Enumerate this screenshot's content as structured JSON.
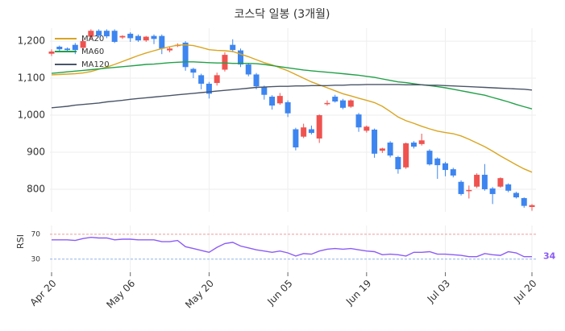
{
  "chart_data": [
    {
      "type": "candlestick",
      "title": "코스닥 일봉 (3개월)",
      "categories": [
        "Apr 20",
        null,
        null,
        null,
        null,
        null,
        null,
        null,
        null,
        null,
        "May 06",
        null,
        null,
        null,
        null,
        null,
        null,
        null,
        null,
        null,
        "May 20",
        null,
        null,
        null,
        null,
        null,
        null,
        null,
        null,
        null,
        "Jun 05",
        null,
        null,
        null,
        null,
        null,
        null,
        null,
        null,
        null,
        "Jun 19",
        null,
        null,
        null,
        null,
        null,
        null,
        null,
        null,
        null,
        "Jul 03",
        null,
        null,
        null,
        null,
        null,
        null,
        null,
        null,
        null,
        null,
        "Jul 20"
      ],
      "open": [
        1166,
        1185,
        1180,
        1190,
        1182,
        1212,
        1228,
        1228,
        1228,
        1210,
        1220,
        1214,
        1202,
        1214,
        1214,
        1175,
        1188,
        1196,
        1125,
        1108,
        1085,
        1087,
        1123,
        1190,
        1175,
        1137,
        1110,
        1076,
        1050,
        1032,
        1035,
        962,
        942,
        962,
        937,
        1030,
        1050,
        1040,
        1023,
        1002,
        958,
        961,
        904,
        926,
        887,
        859,
        926,
        922,
        904,
        883,
        870,
        854,
        820,
        796,
        807,
        839,
        802,
        807,
        813,
        790,
        776,
        752
      ],
      "high": [
        1178,
        1188,
        1183,
        1195,
        1205,
        1232,
        1232,
        1232,
        1232,
        1216,
        1224,
        1218,
        1214,
        1218,
        1218,
        1184,
        1194,
        1200,
        1128,
        1112,
        1090,
        1115,
        1170,
        1205,
        1180,
        1140,
        1114,
        1080,
        1054,
        1060,
        1040,
        966,
        977,
        972,
        1002,
        1040,
        1055,
        1044,
        1043,
        1006,
        972,
        964,
        912,
        930,
        890,
        926,
        930,
        950,
        908,
        886,
        874,
        858,
        824,
        810,
        843,
        868,
        806,
        832,
        816,
        793,
        778,
        760
      ],
      "low": [
        1160,
        1172,
        1170,
        1165,
        1178,
        1205,
        1210,
        1208,
        1195,
        1206,
        1198,
        1198,
        1198,
        1192,
        1165,
        1170,
        1184,
        1120,
        1100,
        1070,
        1045,
        1080,
        1118,
        1170,
        1130,
        1105,
        1070,
        1042,
        1015,
        1028,
        995,
        905,
        938,
        948,
        925,
        1026,
        1034,
        1016,
        1020,
        955,
        953,
        885,
        898,
        886,
        842,
        855,
        910,
        918,
        864,
        828,
        835,
        832,
        783,
        775,
        803,
        796,
        760,
        804,
        792,
        775,
        750,
        742
      ],
      "close": [
        1172,
        1178,
        1176,
        1176,
        1200,
        1228,
        1215,
        1213,
        1198,
        1214,
        1208,
        1202,
        1212,
        1206,
        1180,
        1180,
        1190,
        1130,
        1115,
        1085,
        1058,
        1108,
        1163,
        1176,
        1137,
        1110,
        1078,
        1055,
        1026,
        1052,
        1005,
        913,
        967,
        952,
        1000,
        1033,
        1037,
        1020,
        1040,
        967,
        969,
        896,
        910,
        891,
        854,
        924,
        915,
        932,
        867,
        865,
        852,
        837,
        787,
        798,
        839,
        800,
        787,
        830,
        796,
        778,
        755,
        757
      ],
      "up_color": "#ef5350",
      "down_color": "#3d85f0",
      "series": [
        {
          "name": "MA20",
          "color": "#daa520",
          "values": [
            1109,
            1110,
            1111,
            1112,
            1114,
            1118,
            1124,
            1130,
            1137,
            1145,
            1153,
            1161,
            1168,
            1174,
            1180,
            1185,
            1189,
            1190,
            1188,
            1183,
            1177,
            1175,
            1174,
            1172,
            1165,
            1158,
            1150,
            1142,
            1136,
            1128,
            1120,
            1110,
            1100,
            1090,
            1082,
            1074,
            1066,
            1058,
            1052,
            1046,
            1040,
            1034,
            1024,
            1010,
            995,
            985,
            978,
            970,
            963,
            957,
            953,
            950,
            944,
            935,
            925,
            915,
            903,
            890,
            878,
            866,
            855,
            846
          ]
        },
        {
          "name": "MA60",
          "color": "#22a049",
          "values": [
            1113,
            1115,
            1117,
            1119,
            1121,
            1123,
            1125,
            1127,
            1129,
            1131,
            1133,
            1135,
            1137,
            1138,
            1140,
            1142,
            1143,
            1144,
            1144,
            1143,
            1142,
            1141,
            1141,
            1140,
            1140,
            1140,
            1139,
            1137,
            1134,
            1131,
            1128,
            1125,
            1122,
            1120,
            1118,
            1116,
            1114,
            1112,
            1110,
            1108,
            1105,
            1102,
            1098,
            1094,
            1090,
            1088,
            1085,
            1082,
            1080,
            1077,
            1074,
            1070,
            1066,
            1062,
            1058,
            1054,
            1048,
            1042,
            1036,
            1029,
            1023,
            1017
          ]
        },
        {
          "name": "MA120",
          "color": "#4a5568",
          "values": [
            1020,
            1022,
            1024,
            1027,
            1029,
            1031,
            1033,
            1036,
            1038,
            1040,
            1043,
            1045,
            1047,
            1049,
            1051,
            1053,
            1055,
            1057,
            1059,
            1061,
            1063,
            1065,
            1067,
            1069,
            1071,
            1073,
            1075,
            1076,
            1077,
            1078,
            1078,
            1079,
            1079,
            1080,
            1080,
            1080,
            1081,
            1081,
            1082,
            1082,
            1083,
            1083,
            1083,
            1083,
            1083,
            1082,
            1082,
            1082,
            1081,
            1081,
            1080,
            1079,
            1078,
            1077,
            1076,
            1075,
            1074,
            1073,
            1072,
            1071,
            1070,
            1068
          ]
        }
      ],
      "ylim": [
        739,
        1235
      ],
      "yticks": [
        800,
        900,
        {
          "value": 1000,
          "label": "1,000"
        },
        {
          "value": 1100,
          "label": "1,100"
        },
        {
          "value": 1200,
          "label": "1,200"
        }
      ],
      "grid": true,
      "legend": "upper left"
    },
    {
      "type": "line",
      "ylabel": "RSI",
      "color": "#8b5cf6",
      "values": [
        61,
        61,
        61,
        60,
        63,
        65,
        64,
        64,
        61,
        62,
        62,
        61,
        61,
        61,
        58,
        58,
        60,
        50,
        47,
        44,
        41,
        49,
        55,
        57,
        51,
        48,
        45,
        43,
        41,
        43,
        40,
        35,
        39,
        38,
        43,
        46,
        47,
        46,
        47,
        45,
        43,
        42,
        37,
        38,
        37,
        35,
        41,
        41,
        42,
        38,
        38,
        37,
        36,
        34,
        34,
        39,
        37,
        36,
        42,
        40,
        34,
        34
      ],
      "ylim": [
        9,
        84
      ],
      "yticks": [
        30,
        70
      ],
      "hlines": [
        {
          "value": 70,
          "color": "#ef9a9a"
        },
        {
          "value": 30,
          "color": "#90b4e8"
        }
      ]
    }
  ]
}
